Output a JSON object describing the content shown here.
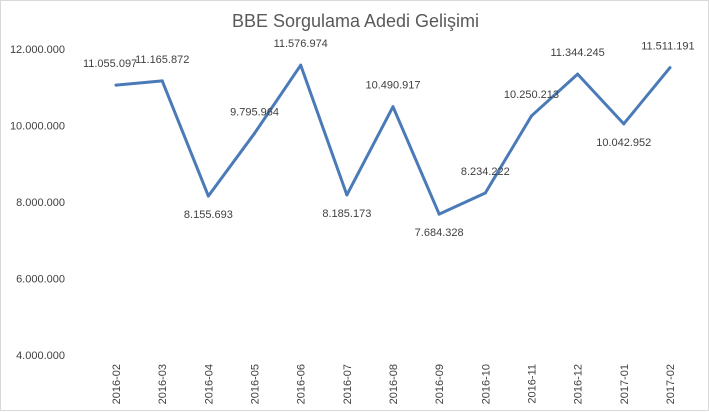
{
  "chart_data": {
    "type": "line",
    "title": "BBE Sorgulama Adedi Gelişimi",
    "xlabel": "",
    "ylabel": "",
    "ylim": [
      4000000,
      12000000
    ],
    "yticks": [
      4000000,
      6000000,
      8000000,
      10000000,
      12000000
    ],
    "ytick_labels": [
      "4.000.000",
      "6.000.000",
      "8.000.000",
      "10.000.000",
      "12.000.000"
    ],
    "grid": false,
    "legend": "none",
    "line_color": "#4a7ab8",
    "categories": [
      "2016-02",
      "2016-03",
      "2016-04",
      "2016-05",
      "2016-06",
      "2016-07",
      "2016-08",
      "2016-09",
      "2016-10",
      "2016-11",
      "2016-12",
      "2017-01",
      "2017-02"
    ],
    "values": [
      11055097,
      11165872,
      8155693,
      9795964,
      11576974,
      8185173,
      10490917,
      7684328,
      8234222,
      10250213,
      11344245,
      10042952,
      11511191
    ],
    "value_labels": [
      "11.055.097",
      "11.165.872",
      "8.155.693",
      "9.795.964",
      "11.576.974",
      "8.185.173",
      "10.490.917",
      "7.684.328",
      "8.234.222",
      "10.250.213",
      "11.344.245",
      "10.042.952",
      "11.511.191"
    ]
  }
}
